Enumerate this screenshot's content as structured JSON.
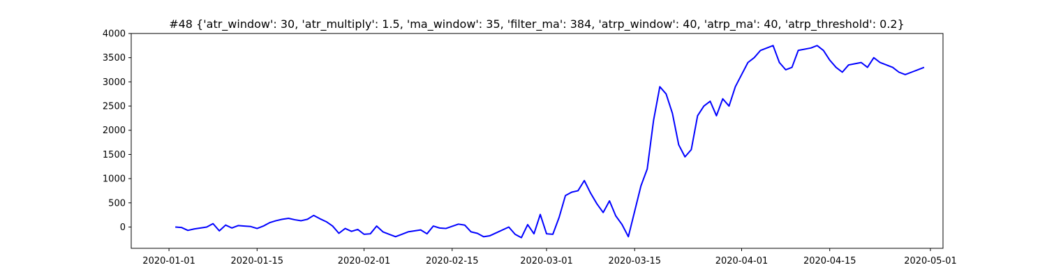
{
  "chart_data": {
    "type": "line",
    "title": "#48 {'atr_window': 30, 'atr_multiply': 1.5, 'ma_window': 35, 'filter_ma': 384, 'atrp_window': 40, 'atrp_ma': 40, 'atrp_threshold': 0.2}",
    "xlabel": "",
    "ylabel": "",
    "x_is_date": true,
    "xlim": [
      "2019-12-26",
      "2020-05-03"
    ],
    "ylim": [
      -440,
      4000
    ],
    "grid": false,
    "line_color": "#0000ff",
    "x_ticks": [
      "2020-01-01",
      "2020-01-15",
      "2020-02-01",
      "2020-02-15",
      "2020-03-01",
      "2020-03-15",
      "2020-04-01",
      "2020-04-15",
      "2020-05-01"
    ],
    "y_ticks": [
      0,
      500,
      1000,
      1500,
      2000,
      2500,
      3000,
      3500,
      4000
    ],
    "series": [
      {
        "x": [
          "2020-01-02",
          "2020-01-03",
          "2020-01-04",
          "2020-01-05",
          "2020-01-07",
          "2020-01-08",
          "2020-01-09",
          "2020-01-10",
          "2020-01-11",
          "2020-01-12",
          "2020-01-13",
          "2020-01-14",
          "2020-01-15",
          "2020-01-16",
          "2020-01-17",
          "2020-01-18",
          "2020-01-19",
          "2020-01-20",
          "2020-01-21",
          "2020-01-22",
          "2020-01-23",
          "2020-01-24",
          "2020-01-25",
          "2020-01-26",
          "2020-01-27",
          "2020-01-28",
          "2020-01-29",
          "2020-01-30",
          "2020-01-31",
          "2020-02-01",
          "2020-02-02",
          "2020-02-03",
          "2020-02-04",
          "2020-02-05",
          "2020-02-06",
          "2020-02-07",
          "2020-02-08",
          "2020-02-09",
          "2020-02-10",
          "2020-02-11",
          "2020-02-12",
          "2020-02-13",
          "2020-02-14",
          "2020-02-16",
          "2020-02-17",
          "2020-02-18",
          "2020-02-19",
          "2020-02-20",
          "2020-02-21",
          "2020-02-22",
          "2020-02-24",
          "2020-02-25",
          "2020-02-26",
          "2020-02-27",
          "2020-02-28",
          "2020-02-29",
          "2020-03-01",
          "2020-03-02",
          "2020-03-03",
          "2020-03-04",
          "2020-03-05",
          "2020-03-06",
          "2020-03-07",
          "2020-03-08",
          "2020-03-09",
          "2020-03-10",
          "2020-03-11",
          "2020-03-12",
          "2020-03-13",
          "2020-03-14",
          "2020-03-16",
          "2020-03-17",
          "2020-03-18",
          "2020-03-19",
          "2020-03-20",
          "2020-03-21",
          "2020-03-22",
          "2020-03-23",
          "2020-03-24",
          "2020-03-25",
          "2020-03-26",
          "2020-03-27",
          "2020-03-28",
          "2020-03-29",
          "2020-03-30",
          "2020-03-31",
          "2020-04-01",
          "2020-04-02",
          "2020-04-03",
          "2020-04-04",
          "2020-04-06",
          "2020-04-07",
          "2020-04-08",
          "2020-04-09",
          "2020-04-10",
          "2020-04-12",
          "2020-04-13",
          "2020-04-14",
          "2020-04-15",
          "2020-04-16",
          "2020-04-17",
          "2020-04-18",
          "2020-04-20",
          "2020-04-21",
          "2020-04-22",
          "2020-04-23",
          "2020-04-24",
          "2020-04-25",
          "2020-04-26",
          "2020-04-27",
          "2020-04-28",
          "2020-04-29",
          "2020-04-30"
        ],
        "y": [
          0,
          -10,
          -70,
          -40,
          0,
          70,
          -80,
          40,
          -20,
          30,
          20,
          10,
          -30,
          20,
          90,
          130,
          160,
          180,
          150,
          130,
          160,
          240,
          170,
          110,
          20,
          -130,
          -30,
          -90,
          -50,
          -150,
          -140,
          20,
          -100,
          -150,
          -200,
          -150,
          -100,
          -80,
          -60,
          -140,
          20,
          -20,
          -30,
          60,
          40,
          -100,
          -130,
          -200,
          -180,
          -120,
          0,
          -150,
          -220,
          50,
          -140,
          260,
          -140,
          -150,
          200,
          650,
          720,
          750,
          960,
          700,
          480,
          300,
          540,
          230,
          50,
          -200,
          850,
          1200,
          2200,
          2900,
          2750,
          2350,
          1700,
          1450,
          1600,
          2300,
          2500,
          2600,
          2300,
          2650,
          2500,
          2900,
          3150,
          3400,
          3500,
          3650,
          3750,
          3400,
          3250,
          3300,
          3650,
          3700,
          3750,
          3650,
          3450,
          3300,
          3200,
          3350,
          3400,
          3300,
          3500,
          3400,
          3350,
          3300,
          3200,
          3150,
          3200,
          3250,
          3300
        ]
      }
    ]
  }
}
